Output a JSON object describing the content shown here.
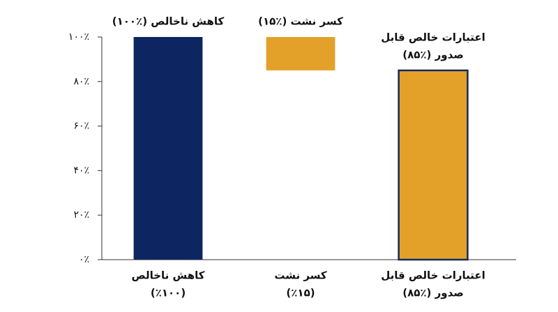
{
  "chart_data": {
    "type": "waterfall",
    "categories": [
      [
        "کاهش ناخالص",
        "(٪۱۰۰)"
      ],
      [
        "کسر نشت",
        "(٪۱۵)"
      ],
      [
        "اعتبارات خالص قابل",
        "صدور (٪۸۵)"
      ]
    ],
    "values": [
      100,
      15,
      85
    ],
    "value_labels": [
      [
        "کاهش ناخالص (٪۱۰۰)"
      ],
      [
        "کسر نشت (٪۱۵)"
      ],
      [
        "اعتبارات خالص قابل",
        "صدور (٪۸۵)"
      ]
    ],
    "measures": [
      "total",
      "decrease",
      "total"
    ],
    "colors": [
      "#0d2560",
      "#e3a12a",
      "#e3a12a"
    ],
    "edgecolors": [
      null,
      null,
      "#13295b"
    ],
    "ylim": [
      0,
      100
    ],
    "yticks": [
      {
        "value": 0,
        "label": "۰٪"
      },
      {
        "value": 20,
        "label": "۲۰٪"
      },
      {
        "value": 40,
        "label": "۴۰٪"
      },
      {
        "value": 60,
        "label": "۶۰٪"
      },
      {
        "value": 80,
        "label": "۸۰٪"
      },
      {
        "value": 100,
        "label": "۱۰۰٪"
      }
    ]
  }
}
